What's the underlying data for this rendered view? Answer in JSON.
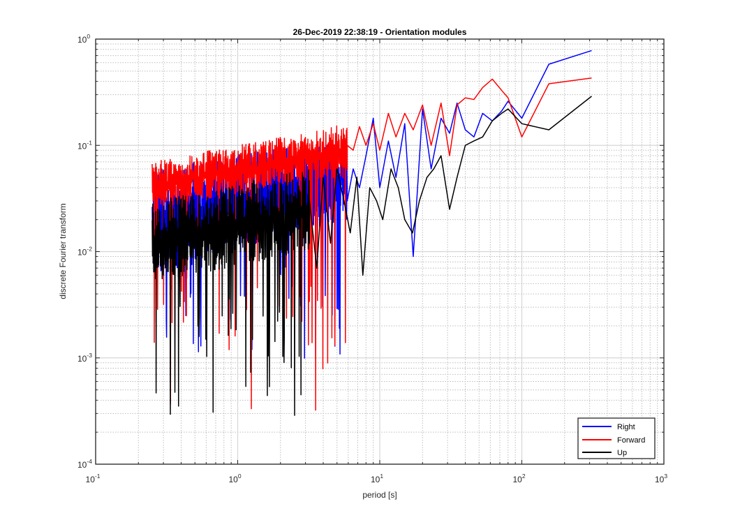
{
  "chart_data": {
    "type": "line",
    "title": "26-Dec-2019 22:38:19 - Orientation modules",
    "xlabel": "period [s]",
    "ylabel": "discrete Fourier transform",
    "xscale": "log",
    "yscale": "log",
    "xlim": [
      0.1,
      1000
    ],
    "ylim": [
      0.0001,
      1
    ],
    "grid": true,
    "minor_grid": true,
    "legend": {
      "placement": "bottom-right",
      "entries": [
        "Right",
        "Forward",
        "Up"
      ]
    },
    "x_ticks": [
      {
        "base": "10",
        "exp": "-1"
      },
      {
        "base": "10",
        "exp": "0"
      },
      {
        "base": "10",
        "exp": "1"
      },
      {
        "base": "10",
        "exp": "2"
      },
      {
        "base": "10",
        "exp": "3"
      }
    ],
    "y_ticks": [
      {
        "base": "10",
        "exp": "-4"
      },
      {
        "base": "10",
        "exp": "-3"
      },
      {
        "base": "10",
        "exp": "-2"
      },
      {
        "base": "10",
        "exp": "-1"
      },
      {
        "base": "10",
        "exp": "0"
      }
    ],
    "series": [
      {
        "name": "Right",
        "color": "#0000ff",
        "tail_x": [
          5.9,
          6.5,
          7.2,
          8.0,
          9.0,
          10.0,
          11.5,
          13.0,
          15.0,
          17.2,
          20.0,
          23.0,
          27.0,
          31.0,
          35.0,
          40.0,
          46.0,
          53.0,
          62.0,
          72.0,
          80.0,
          100.0,
          155.0,
          310.0
        ],
        "tail_y": [
          0.03,
          0.06,
          0.04,
          0.08,
          0.18,
          0.04,
          0.11,
          0.05,
          0.16,
          0.009,
          0.22,
          0.06,
          0.18,
          0.13,
          0.25,
          0.14,
          0.12,
          0.2,
          0.17,
          0.21,
          0.26,
          0.18,
          0.58,
          0.78
        ],
        "noise": {
          "x_start": 0.25,
          "x_end": 5.9,
          "points": 650,
          "low_start": 0.006,
          "low_end": 0.02,
          "high_start": 0.06,
          "high_end": 0.12,
          "dips": [
            0.0012,
            0.0019,
            0.0024,
            0.0028,
            0.0035,
            0.0045,
            0.006
          ]
        }
      },
      {
        "name": "Forward",
        "color": "#ff0000",
        "tail_x": [
          5.9,
          6.5,
          7.2,
          8.0,
          9.0,
          10.0,
          11.5,
          13.0,
          15.0,
          17.2,
          20.0,
          23.0,
          27.0,
          31.0,
          35.0,
          40.0,
          46.0,
          53.0,
          62.0,
          72.0,
          80.0,
          100.0,
          155.0,
          310.0
        ],
        "tail_y": [
          0.1,
          0.09,
          0.15,
          0.1,
          0.16,
          0.09,
          0.2,
          0.12,
          0.2,
          0.14,
          0.24,
          0.1,
          0.25,
          0.08,
          0.24,
          0.28,
          0.27,
          0.35,
          0.42,
          0.33,
          0.28,
          0.12,
          0.38,
          0.43
        ],
        "noise": {
          "x_start": 0.25,
          "x_end": 5.9,
          "points": 650,
          "low_start": 0.025,
          "low_end": 0.05,
          "high_start": 0.07,
          "high_end": 0.16,
          "dips": [
            0.00036,
            0.0008,
            0.0012,
            0.0018,
            0.0025,
            0.003,
            0.004
          ]
        }
      },
      {
        "name": "Up",
        "color": "#000000",
        "tail_x": [
          3.2,
          3.6,
          4.0,
          4.5,
          5.0,
          5.6,
          6.2,
          6.9,
          7.6,
          8.5,
          9.5,
          10.5,
          12.0,
          13.5,
          15.0,
          17.0,
          19.0,
          21.5,
          24.0,
          27.0,
          31.0,
          35.0,
          40.0,
          46.0,
          53.0,
          62.0,
          72.0,
          80.0,
          100.0,
          155.0,
          310.0
        ],
        "tail_y": [
          0.03,
          0.007,
          0.05,
          0.012,
          0.06,
          0.03,
          0.015,
          0.05,
          0.006,
          0.04,
          0.03,
          0.02,
          0.06,
          0.04,
          0.02,
          0.015,
          0.03,
          0.05,
          0.06,
          0.08,
          0.025,
          0.05,
          0.1,
          0.11,
          0.12,
          0.17,
          0.2,
          0.22,
          0.16,
          0.14,
          0.29
        ],
        "noise": {
          "x_start": 0.25,
          "x_end": 3.2,
          "points": 520,
          "low_start": 0.005,
          "low_end": 0.01,
          "high_start": 0.03,
          "high_end": 0.06,
          "dips": [
            0.0003,
            0.00055,
            0.0009,
            0.0016,
            0.0023,
            0.003
          ]
        }
      }
    ]
  }
}
